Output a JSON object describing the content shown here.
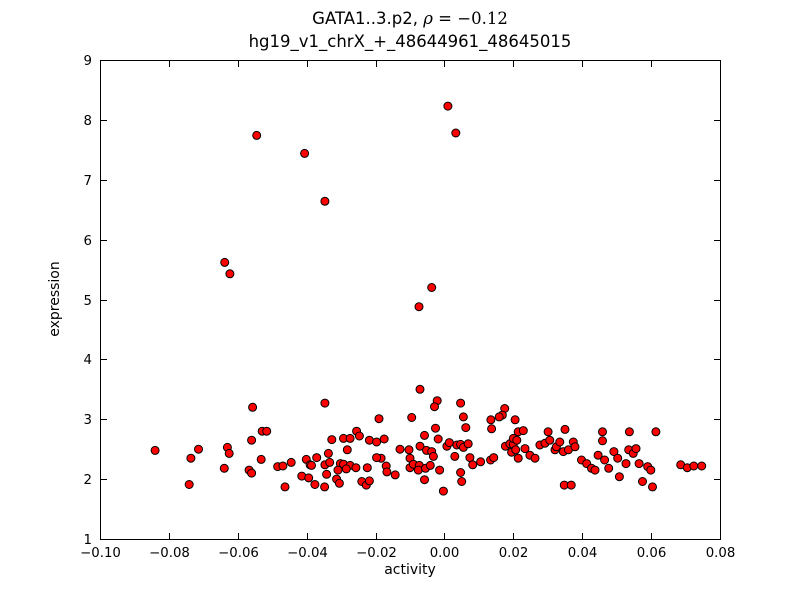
{
  "header": {
    "title_gene": "GATA1..3.p2, ",
    "title_rho_symbol": "ρ",
    "title_rho_value": " = −0.12",
    "subtitle": "hg19_v1_chrX_+_48644961_48645015"
  },
  "chart_data": {
    "type": "scatter",
    "title": "GATA1..3.p2, ρ = −0.12",
    "subtitle": "hg19_v1_chrX_+_48644961_48645015",
    "correlation": -0.12,
    "xlabel": "activity",
    "ylabel": "expression",
    "xlim": [
      -0.1,
      0.08
    ],
    "ylim": [
      1,
      9
    ],
    "xticks": [
      -0.1,
      -0.08,
      -0.06,
      -0.04,
      -0.02,
      0.0,
      0.02,
      0.04,
      0.06,
      0.08
    ],
    "xtick_labels": [
      "−0.10",
      "−0.08",
      "−0.06",
      "−0.04",
      "−0.02",
      "0.00",
      "0.02",
      "0.04",
      "0.06",
      "0.08"
    ],
    "yticks": [
      1,
      2,
      3,
      4,
      5,
      6,
      7,
      8,
      9
    ],
    "ytick_labels": [
      "1",
      "2",
      "3",
      "4",
      "5",
      "6",
      "7",
      "8",
      "9"
    ],
    "grid": false,
    "legend": null,
    "marker_color": "#ff0000",
    "marker_edge_color": "#000000",
    "points": [
      [
        0.001,
        8.23
      ],
      [
        0.0033,
        7.78
      ],
      [
        -0.0545,
        7.74
      ],
      [
        -0.0406,
        7.44
      ],
      [
        -0.0347,
        6.64
      ],
      [
        -0.0638,
        5.62
      ],
      [
        -0.0623,
        5.43
      ],
      [
        -0.0037,
        5.2
      ],
      [
        -0.0074,
        4.88
      ],
      [
        -0.0071,
        3.5
      ],
      [
        -0.0021,
        3.31
      ],
      [
        -0.0029,
        3.21
      ],
      [
        0.0047,
        3.27
      ],
      [
        -0.0347,
        3.27
      ],
      [
        -0.0557,
        3.2
      ],
      [
        0.0175,
        3.18
      ],
      [
        0.0168,
        3.07
      ],
      [
        -0.0095,
        3.03
      ],
      [
        0.0055,
        3.04
      ],
      [
        -0.019,
        3.01
      ],
      [
        0.0205,
        2.99
      ],
      [
        0.0135,
        2.99
      ],
      [
        0.0159,
        3.04
      ],
      [
        -0.084,
        2.48
      ],
      [
        -0.0741,
        1.91
      ],
      [
        -0.0736,
        2.35
      ],
      [
        -0.0714,
        2.5
      ],
      [
        -0.063,
        2.53
      ],
      [
        -0.0625,
        2.43
      ],
      [
        -0.0639,
        2.18
      ],
      [
        -0.0567,
        2.15
      ],
      [
        -0.056,
        2.1
      ],
      [
        -0.0532,
        2.33
      ],
      [
        -0.0529,
        2.8
      ],
      [
        -0.0516,
        2.8
      ],
      [
        -0.056,
        2.65
      ],
      [
        -0.0484,
        2.21
      ],
      [
        -0.0469,
        2.22
      ],
      [
        -0.0445,
        2.28
      ],
      [
        -0.0463,
        1.87
      ],
      [
        -0.0414,
        2.05
      ],
      [
        -0.0394,
        2.02
      ],
      [
        -0.0401,
        2.33
      ],
      [
        -0.039,
        2.24
      ],
      [
        -0.0255,
        2.8
      ],
      [
        -0.0247,
        2.72
      ],
      [
        -0.0327,
        2.66
      ],
      [
        -0.0293,
        2.68
      ],
      [
        -0.0274,
        2.68
      ],
      [
        -0.0218,
        2.65
      ],
      [
        -0.0197,
        2.62
      ],
      [
        -0.0175,
        2.67
      ],
      [
        -0.0129,
        2.5
      ],
      [
        -0.0103,
        2.49
      ],
      [
        -0.0282,
        2.49
      ],
      [
        -0.0337,
        2.43
      ],
      [
        -0.0371,
        2.36
      ],
      [
        -0.0386,
        2.23
      ],
      [
        -0.0347,
        2.24
      ],
      [
        -0.0333,
        2.28
      ],
      [
        -0.0302,
        2.26
      ],
      [
        -0.0293,
        2.25
      ],
      [
        -0.0274,
        2.23
      ],
      [
        -0.0257,
        2.19
      ],
      [
        -0.0285,
        2.17
      ],
      [
        -0.0309,
        2.15
      ],
      [
        -0.0224,
        2.19
      ],
      [
        -0.0184,
        2.35
      ],
      [
        -0.0197,
        2.36
      ],
      [
        -0.0169,
        2.22
      ],
      [
        -0.0167,
        2.12
      ],
      [
        -0.0376,
        1.91
      ],
      [
        -0.0342,
        2.08
      ],
      [
        -0.0313,
        2.0
      ],
      [
        -0.0305,
        1.93
      ],
      [
        -0.0348,
        1.87
      ],
      [
        -0.024,
        1.96
      ],
      [
        -0.0227,
        1.9
      ],
      [
        -0.0218,
        1.97
      ],
      [
        -0.0143,
        2.07
      ],
      [
        -0.0058,
        2.73
      ],
      [
        -0.0026,
        2.85
      ],
      [
        -0.0018,
        2.67
      ],
      [
        0.0062,
        2.86
      ],
      [
        0.0137,
        2.84
      ],
      [
        -0.0071,
        2.55
      ],
      [
        -0.0052,
        2.48
      ],
      [
        -0.0037,
        2.46
      ],
      [
        -0.0032,
        2.38
      ],
      [
        0.0007,
        2.55
      ],
      [
        0.0014,
        2.61
      ],
      [
        0.0036,
        2.57
      ],
      [
        0.0047,
        2.58
      ],
      [
        0.0055,
        2.53
      ],
      [
        0.0069,
        2.59
      ],
      [
        0.003,
        2.38
      ],
      [
        0.0074,
        2.36
      ],
      [
        0.0082,
        2.24
      ],
      [
        0.0105,
        2.29
      ],
      [
        0.0134,
        2.32
      ],
      [
        0.0143,
        2.36
      ],
      [
        0.0177,
        2.55
      ],
      [
        0.019,
        2.59
      ],
      [
        0.02,
        2.58
      ],
      [
        0.0195,
        2.45
      ],
      [
        0.0207,
        2.49
      ],
      [
        0.0214,
        2.35
      ],
      [
        -0.01,
        2.35
      ],
      [
        -0.01,
        2.19
      ],
      [
        -0.009,
        2.25
      ],
      [
        -0.0073,
        2.23
      ],
      [
        -0.0076,
        2.15
      ],
      [
        -0.0055,
        2.18
      ],
      [
        -0.0041,
        2.23
      ],
      [
        -0.0014,
        2.15
      ],
      [
        0.0047,
        2.11
      ],
      [
        0.005,
        1.96
      ],
      [
        -0.0058,
        1.99
      ],
      [
        -0.0003,
        1.8
      ],
      [
        0.0214,
        2.79
      ],
      [
        0.0229,
        2.81
      ],
      [
        0.02,
        2.68
      ],
      [
        0.021,
        2.65
      ],
      [
        0.0234,
        2.51
      ],
      [
        0.0248,
        2.4
      ],
      [
        0.0263,
        2.35
      ],
      [
        0.0277,
        2.57
      ],
      [
        0.0292,
        2.6
      ],
      [
        0.0301,
        2.79
      ],
      [
        0.0306,
        2.65
      ],
      [
        0.0321,
        2.49
      ],
      [
        0.0325,
        2.54
      ],
      [
        0.0335,
        2.62
      ],
      [
        0.035,
        2.83
      ],
      [
        0.0345,
        2.46
      ],
      [
        0.036,
        2.49
      ],
      [
        0.0374,
        2.62
      ],
      [
        0.0379,
        2.54
      ],
      [
        0.0398,
        2.32
      ],
      [
        0.0413,
        2.26
      ],
      [
        0.0427,
        2.18
      ],
      [
        0.0437,
        2.15
      ],
      [
        0.0459,
        2.79
      ],
      [
        0.0459,
        2.64
      ],
      [
        0.0446,
        2.4
      ],
      [
        0.0465,
        2.32
      ],
      [
        0.0477,
        2.18
      ],
      [
        0.0492,
        2.46
      ],
      [
        0.0503,
        2.35
      ],
      [
        0.0508,
        2.04
      ],
      [
        0.0527,
        2.26
      ],
      [
        0.0537,
        2.79
      ],
      [
        0.0535,
        2.49
      ],
      [
        0.0548,
        2.43
      ],
      [
        0.0556,
        2.51
      ],
      [
        0.0565,
        2.26
      ],
      [
        0.0575,
        1.96
      ],
      [
        0.059,
        2.21
      ],
      [
        0.0599,
        2.15
      ],
      [
        0.0604,
        1.87
      ],
      [
        0.0614,
        2.79
      ],
      [
        0.0348,
        1.9
      ],
      [
        0.0368,
        1.9
      ],
      [
        0.0686,
        2.24
      ],
      [
        0.0705,
        2.19
      ],
      [
        0.0724,
        2.22
      ],
      [
        0.0747,
        2.22
      ]
    ]
  }
}
